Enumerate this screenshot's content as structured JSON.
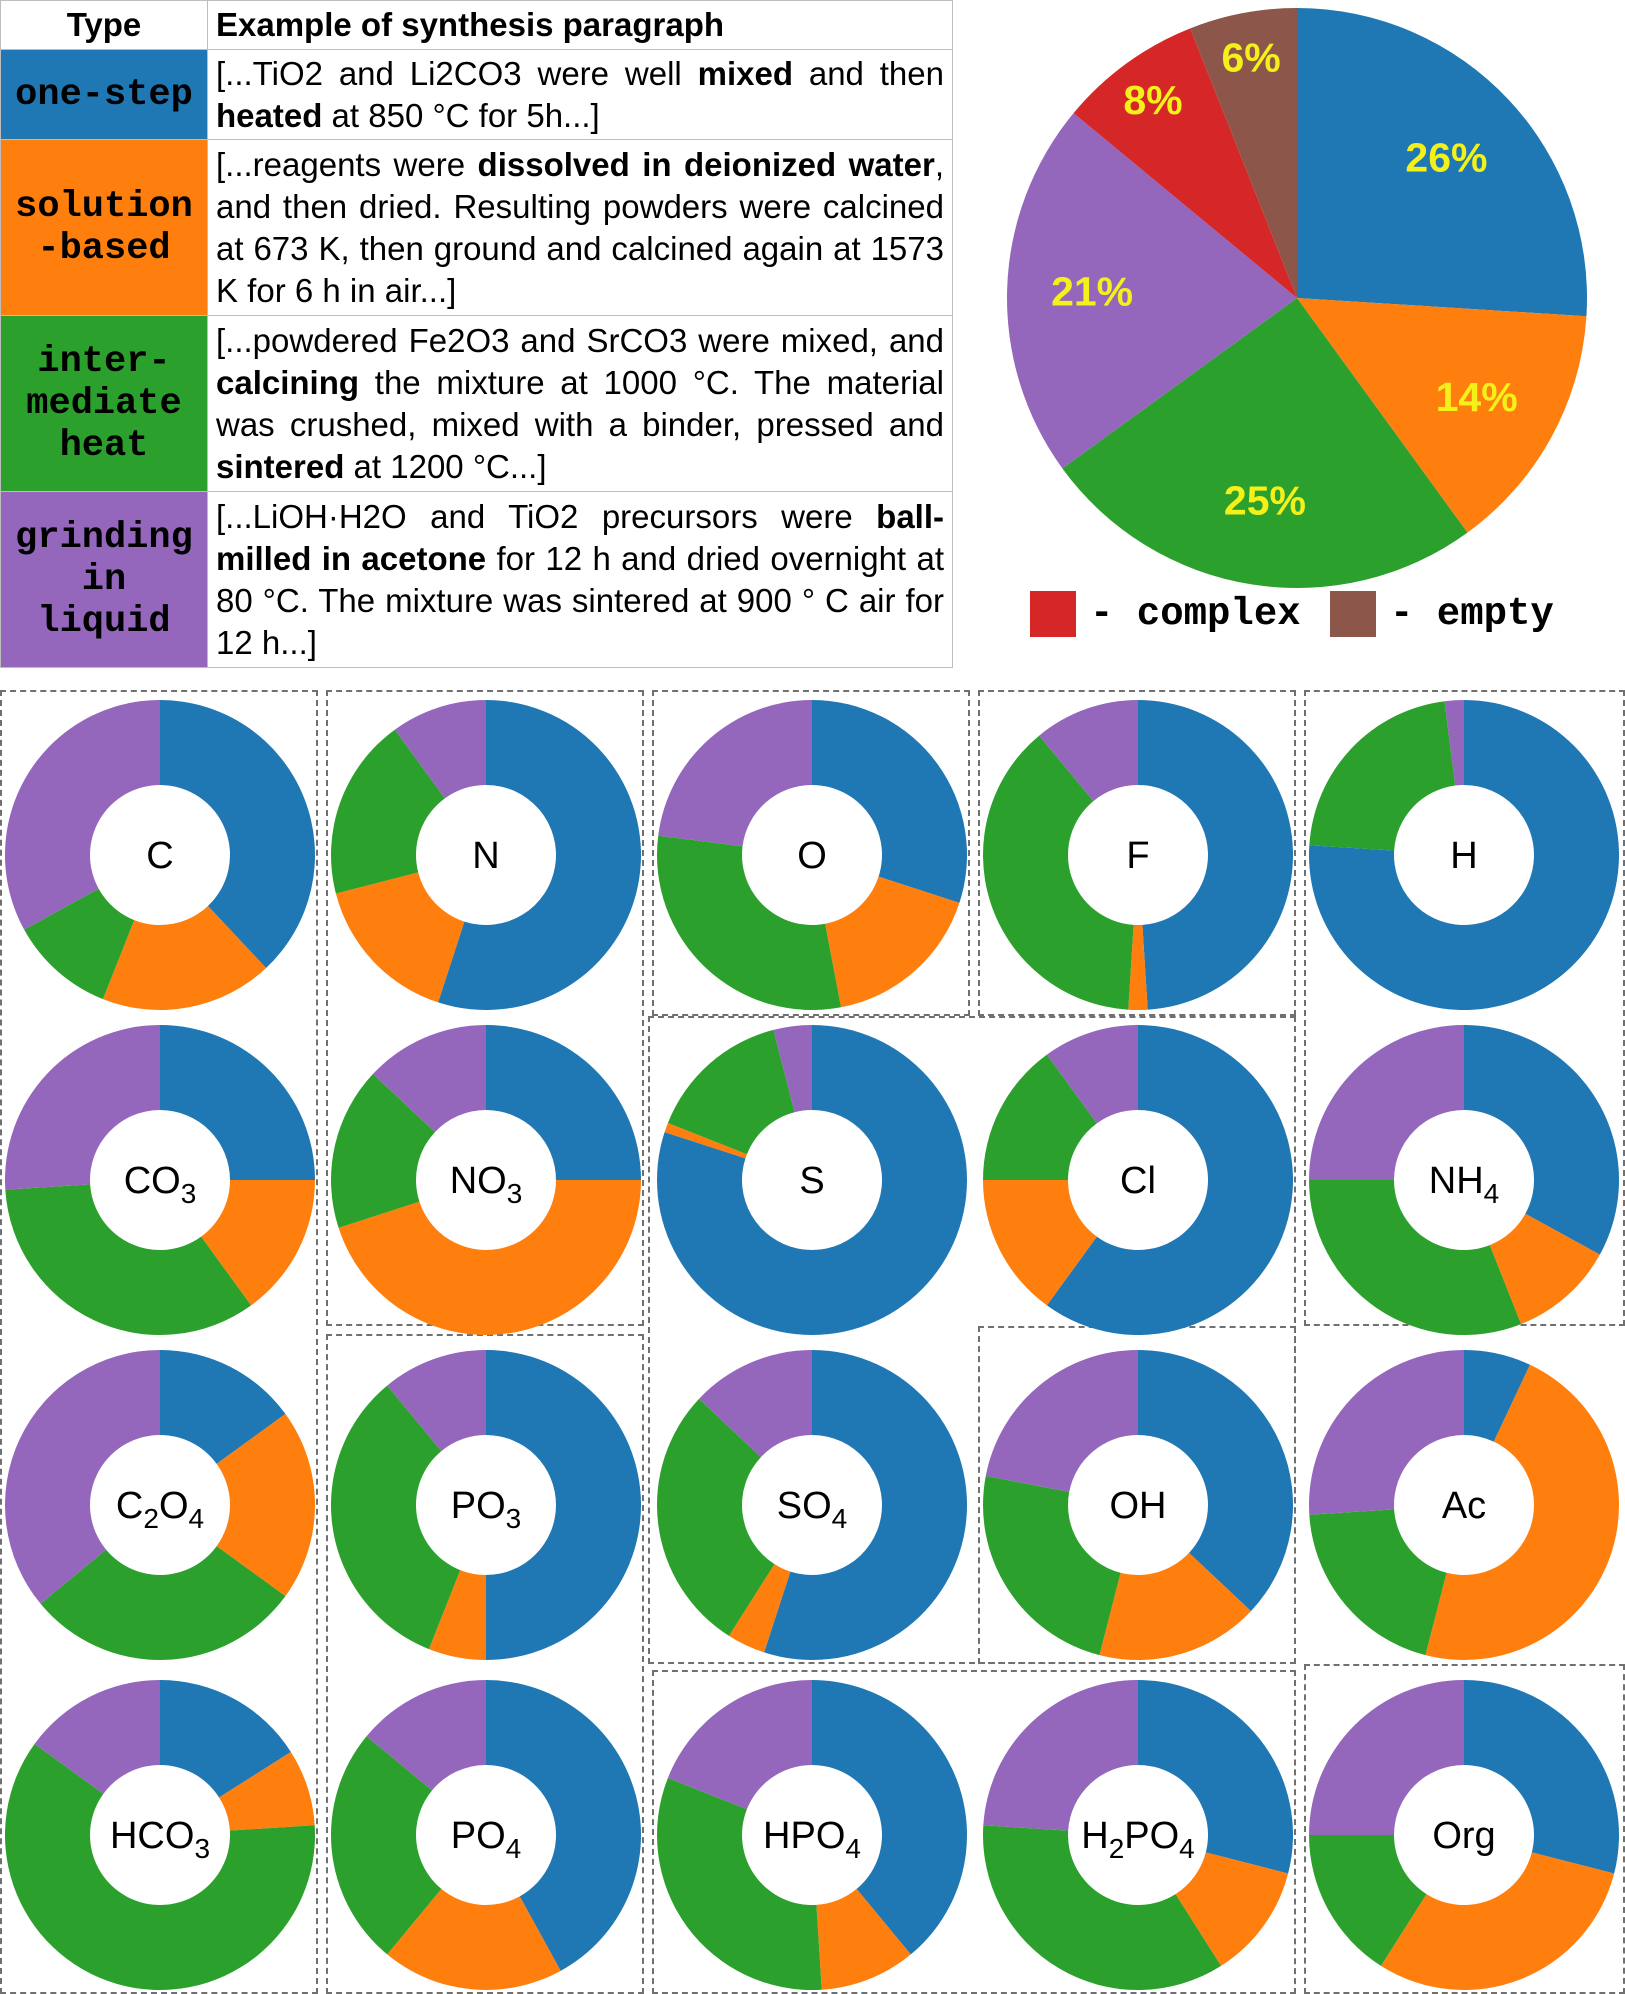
{
  "table": {
    "headers": [
      "Type",
      "Example of synthesis paragraph"
    ],
    "rows": [
      {
        "type": "one-step",
        "color": "#1f77b4",
        "text_color": "#000000",
        "paragraph": [
          {
            "t": "[...TiO2 and Li2CO3 were well "
          },
          {
            "t": "mixed",
            "b": true
          },
          {
            "t": " and then "
          },
          {
            "t": "heated",
            "b": true
          },
          {
            "t": " at 850 °C for 5h...]"
          }
        ]
      },
      {
        "type": "solution\n-based",
        "color": "#ff7f0e",
        "text_color": "#000000",
        "paragraph": [
          {
            "t": "[...reagents were "
          },
          {
            "t": "dissolved in deionized water",
            "b": true
          },
          {
            "t": ", and then dried. Resulting powders were calcined at 673 K, then ground and calcined again at 1573 K for 6 h in air...]"
          }
        ]
      },
      {
        "type": "inter-\nmediate\nheat",
        "color": "#2ca02c",
        "text_color": "#000000",
        "paragraph": [
          {
            "t": "[...powdered Fe2O3 and SrCO3 were mixed, and "
          },
          {
            "t": "calcining",
            "b": true
          },
          {
            "t": " the mixture at 1000 °C. The material was crushed, mixed with a binder, pressed and "
          },
          {
            "t": "sintered",
            "b": true
          },
          {
            "t": " at 1200 °C...]"
          }
        ]
      },
      {
        "type": "grinding\nin\nliquid",
        "color": "#9467bd",
        "text_color": "#000000",
        "paragraph": [
          {
            "t": "[...LiOH·H2O and TiO2 precursors were "
          },
          {
            "t": "ball-milled in acetone",
            "b": true
          },
          {
            "t": " for 12 h and dried overnight at 80 °C. The mixture was sintered at 900 ° C air for 12 h...]"
          }
        ]
      }
    ]
  },
  "colors": {
    "one_step": "#1f77b4",
    "solution": "#ff7f0e",
    "intermediate": "#2ca02c",
    "grinding": "#9467bd",
    "complex": "#d62728",
    "empty": "#8c564b",
    "label": "#f4f01a"
  },
  "legend": [
    {
      "label": "- complex",
      "color": "#d62728"
    },
    {
      "label": "- empty",
      "color": "#8c564b"
    }
  ],
  "chart_data": [
    {
      "type": "pie",
      "title": "",
      "categories": [
        "one-step",
        "solution-based",
        "intermediate heat",
        "grinding in liquid",
        "complex",
        "empty"
      ],
      "values": [
        26,
        14,
        25,
        21,
        8,
        6
      ],
      "labels": [
        "26%",
        "14%",
        "25%",
        "21%",
        "8%",
        "6%"
      ],
      "colors": [
        "#1f77b4",
        "#ff7f0e",
        "#2ca02c",
        "#9467bd",
        "#d62728",
        "#8c564b"
      ],
      "start": "12 o'clock, clockwise"
    },
    {
      "type": "donut-grid",
      "series_order": [
        "one-step",
        "solution-based",
        "intermediate heat",
        "grinding in liquid"
      ],
      "series_colors": [
        "#1f77b4",
        "#ff7f0e",
        "#2ca02c",
        "#9467bd"
      ],
      "donuts": [
        {
          "label": "C",
          "sub": "",
          "tail": "",
          "values": [
            38,
            18,
            11,
            33
          ]
        },
        {
          "label": "N",
          "sub": "",
          "tail": "",
          "values": [
            55,
            16,
            19,
            10
          ]
        },
        {
          "label": "O",
          "sub": "",
          "tail": "",
          "values": [
            30,
            17,
            30,
            23
          ]
        },
        {
          "label": "F",
          "sub": "",
          "tail": "",
          "values": [
            49,
            2,
            38,
            11
          ]
        },
        {
          "label": "H",
          "sub": "",
          "tail": "",
          "values": [
            76,
            0,
            22,
            2
          ]
        },
        {
          "label": "CO",
          "sub": "3",
          "tail": "",
          "values": [
            25,
            15,
            34,
            26
          ]
        },
        {
          "label": "NO",
          "sub": "3",
          "tail": "",
          "values": [
            25,
            45,
            17,
            13
          ]
        },
        {
          "label": "S",
          "sub": "",
          "tail": "",
          "values": [
            80,
            1,
            15,
            4
          ]
        },
        {
          "label": "Cl",
          "sub": "",
          "tail": "",
          "values": [
            60,
            15,
            15,
            10
          ]
        },
        {
          "label": "NH",
          "sub": "4",
          "tail": "",
          "values": [
            33,
            11,
            31,
            25
          ]
        },
        {
          "label": "C",
          "sub": "2",
          "tail": "O4",
          "values": [
            15,
            20,
            29,
            36
          ]
        },
        {
          "label": "PO",
          "sub": "3",
          "tail": "",
          "values": [
            50,
            6,
            33,
            11
          ]
        },
        {
          "label": "SO",
          "sub": "4",
          "tail": "",
          "values": [
            55,
            4,
            28,
            13
          ]
        },
        {
          "label": "OH",
          "sub": "",
          "tail": "",
          "values": [
            37,
            17,
            24,
            22
          ]
        },
        {
          "label": "Ac",
          "sub": "",
          "tail": "",
          "values": [
            7,
            47,
            20,
            26
          ]
        },
        {
          "label": "HCO",
          "sub": "3",
          "tail": "",
          "values": [
            16,
            8,
            61,
            15
          ]
        },
        {
          "label": "PO",
          "sub": "4",
          "tail": "",
          "values": [
            42,
            19,
            25,
            14
          ]
        },
        {
          "label": "HPO",
          "sub": "4",
          "tail": "",
          "values": [
            39,
            10,
            32,
            19
          ]
        },
        {
          "label": "H",
          "sub": "2",
          "tail": "PO4",
          "values": [
            29,
            12,
            35,
            24
          ]
        },
        {
          "label": "Org",
          "sub": "",
          "tail": "",
          "values": [
            29,
            30,
            16,
            25
          ]
        }
      ]
    }
  ]
}
